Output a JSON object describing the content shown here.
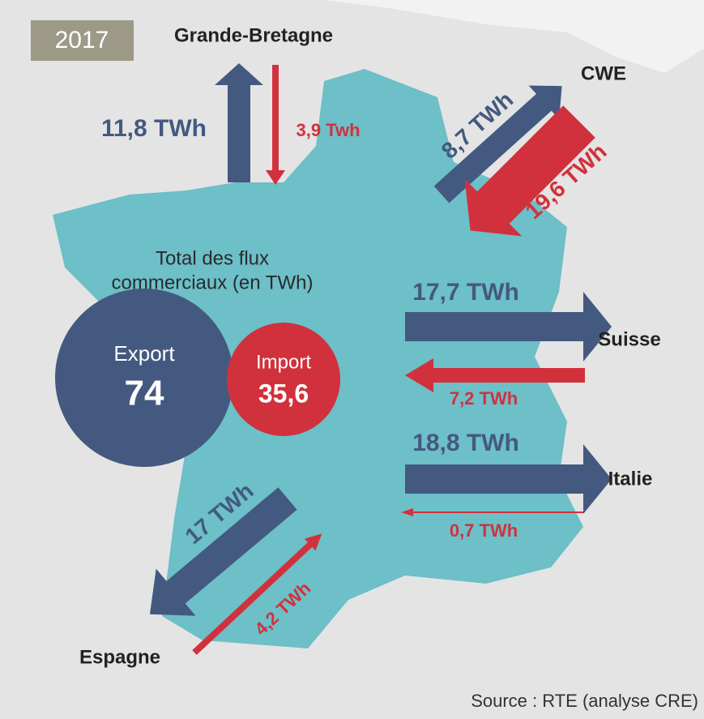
{
  "year": "2017",
  "flows": [
    {
      "partner": "Grande-Bretagne",
      "export": "11,8 TWh",
      "import": "3,9 Twh"
    },
    {
      "partner": "CWE",
      "export": "8,7 TWh",
      "import": "19,6 TWh"
    },
    {
      "partner": "Suisse",
      "export": "17,7 TWh",
      "import": "7,2 TWh"
    },
    {
      "partner": "Italie",
      "export": "18,8 TWh",
      "import": "0,7 TWh"
    },
    {
      "partner": "Espagne",
      "export": "17 TWh",
      "import": "4,2 TWh"
    }
  ],
  "total": {
    "title_line1": "Total des flux",
    "title_line2": "commerciaux (en TWh)",
    "export_label": "Export",
    "export_value": "74",
    "import_label": "Import",
    "import_value": "35,6"
  },
  "source": "Source : RTE (analyse CRE)"
}
